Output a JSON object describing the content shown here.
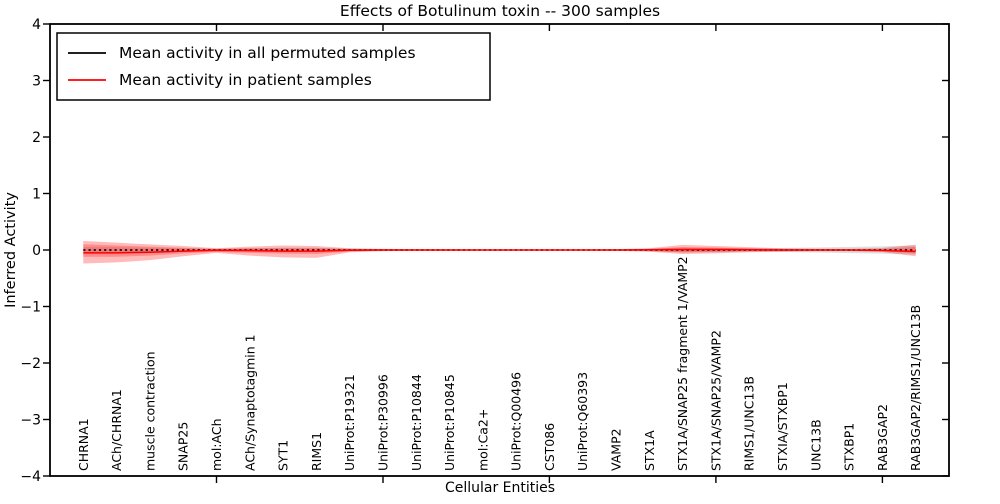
{
  "title": "Effects of Botulinum toxin -- 300 samples",
  "axes": {
    "xlabel": "Cellular Entities",
    "ylabel": "Inferred Activity",
    "ytick_labels": [
      "4",
      "3",
      "2",
      "1",
      "0",
      "−1",
      "−2",
      "−3",
      "−4"
    ],
    "ytick_values": [
      4,
      3,
      2,
      1,
      0,
      -1,
      -2,
      -3,
      -4
    ],
    "xtick_major_units": [
      5,
      10,
      15,
      20,
      25
    ]
  },
  "legend": {
    "items": [
      {
        "label": "Mean activity in all permuted samples",
        "color": "#000000"
      },
      {
        "label": "Mean activity in patient samples",
        "color": "#ff0000"
      }
    ]
  },
  "colors": {
    "patient_line": "#ff0000",
    "permuted_line": "#111111",
    "band_red": "rgba(255,0,0,0.27)",
    "band_red_inner_extra": "rgba(255,0,0,0.25)",
    "band_grey": "rgba(0,0,0,0.13)",
    "spine": "#000000"
  },
  "chart_data": {
    "type": "line",
    "title": "Effects of Botulinum toxin -- 300 samples",
    "xlabel": "Cellular Entities",
    "ylabel": "Inferred Activity",
    "ylim": [
      -4,
      4
    ],
    "xlim_units": [
      0,
      27
    ],
    "grid": false,
    "legend_position": "upper left",
    "categories": [
      "CHRNA1",
      "ACh/CHRNA1",
      "muscle contraction",
      "SNAP25",
      "mol:ACh",
      "ACh/Synaptotagmin 1",
      "SYT1",
      "RIMS1",
      "UniProt:P19321",
      "UniProt:P30996",
      "UniProt:P10844",
      "UniProt:P10845",
      "mol:Ca2+",
      "UniProt:Q00496",
      "CST086",
      "UniProt:Q60393",
      "VAMP2",
      "STX1A",
      "STX1A/SNAP25 fragment 1/VAMP2",
      "STX1A/SNAP25/VAMP2",
      "RIMS1/UNC13B",
      "STXIA/STXBP1",
      "UNC13B",
      "STXBP1",
      "RAB3GAP2",
      "RAB3GAP2/RIMS1/UNC13B"
    ],
    "series": [
      {
        "name": "Mean activity in all permuted samples",
        "values": [
          0,
          0,
          0,
          0,
          0,
          0,
          0,
          0,
          0,
          0,
          0,
          0,
          0,
          0,
          0,
          0,
          0,
          0,
          0,
          0,
          0,
          0,
          0,
          0,
          0,
          0
        ]
      },
      {
        "name": "Mean activity in patient samples",
        "values": [
          -0.05,
          -0.05,
          -0.04,
          -0.02,
          -0.005,
          -0.01,
          -0.02,
          -0.02,
          -0.005,
          0,
          0,
          0,
          0,
          0,
          0,
          0,
          0,
          0.005,
          0.01,
          0.01,
          0.005,
          0,
          0,
          0,
          -0.01,
          -0.025
        ]
      }
    ],
    "bands": {
      "patient_inner_upper": [
        0.1,
        0.08,
        0.06,
        0.04,
        0.02,
        0.03,
        0.04,
        0.04,
        0.02,
        0.012,
        0.01,
        0.01,
        0.008,
        0.008,
        0.008,
        0.008,
        0.01,
        0.02,
        0.05,
        0.04,
        0.03,
        0.018,
        0.012,
        0.012,
        0.018,
        0.055
      ],
      "patient_inner_lower": [
        -0.12,
        -0.12,
        -0.1,
        -0.06,
        -0.03,
        -0.05,
        -0.065,
        -0.07,
        -0.025,
        -0.012,
        -0.01,
        -0.01,
        -0.008,
        -0.008,
        -0.008,
        -0.008,
        -0.01,
        -0.02,
        -0.04,
        -0.03,
        -0.02,
        -0.018,
        -0.012,
        -0.012,
        -0.018,
        -0.06
      ],
      "patient_outer_upper": [
        0.16,
        0.13,
        0.1,
        0.07,
        0.03,
        0.06,
        0.08,
        0.07,
        0.03,
        0.02,
        0.015,
        0.015,
        0.012,
        0.012,
        0.012,
        0.012,
        0.015,
        0.03,
        0.09,
        0.07,
        0.05,
        0.028,
        0.02,
        0.02,
        0.035,
        0.095
      ],
      "patient_outer_lower": [
        -0.24,
        -0.22,
        -0.18,
        -0.11,
        -0.05,
        -0.1,
        -0.13,
        -0.14,
        -0.04,
        -0.02,
        -0.015,
        -0.015,
        -0.012,
        -0.012,
        -0.012,
        -0.012,
        -0.015,
        -0.03,
        -0.07,
        -0.06,
        -0.04,
        -0.028,
        -0.02,
        -0.02,
        -0.035,
        -0.11
      ],
      "permuted_half_width": [
        0.05,
        0.05,
        0.04,
        0.03,
        0.02,
        0.03,
        0.03,
        0.03,
        0.02,
        0.015,
        0.01,
        0.01,
        0.01,
        0.01,
        0.01,
        0.01,
        0.012,
        0.02,
        0.045,
        0.04,
        0.03,
        0.035,
        0.045,
        0.055,
        0.065,
        0.08
      ]
    }
  }
}
